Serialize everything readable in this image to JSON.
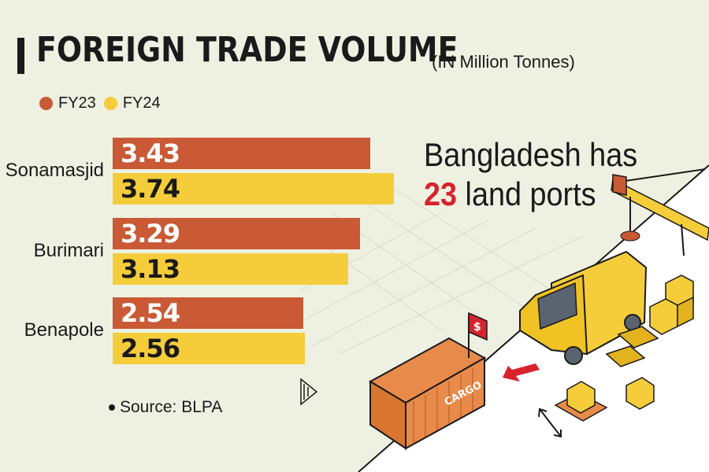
{
  "title": "FOREIGN TRADE VOLUME",
  "subtitle": "(IN Million Tonnes)",
  "headline": {
    "line1": "Bangladesh has",
    "number": "23",
    "line2_rest": " land ports"
  },
  "source": "Source: BLPA",
  "illustration": {
    "cargo_label": "CARGO",
    "sign_label": "$"
  },
  "colors": {
    "background": "#eef1e2",
    "fy23": "#c95a35",
    "fy24": "#f5cd3a",
    "accent_red": "#d7232d"
  },
  "chart_data": {
    "type": "bar",
    "orientation": "horizontal",
    "title": "FOREIGN TRADE VOLUME",
    "subtitle": "(IN Million Tonnes)",
    "categories": [
      "Sonamasjid",
      "Burimari",
      "Benapole"
    ],
    "series": [
      {
        "name": "FY23",
        "color": "#c95a35",
        "values": [
          3.43,
          3.29,
          2.54
        ],
        "labels": [
          "3.43",
          "3.29",
          "2.54"
        ]
      },
      {
        "name": "FY24",
        "color": "#f5cd3a",
        "values": [
          3.74,
          3.13,
          2.56
        ],
        "labels": [
          "3.74",
          "3.13",
          "2.56"
        ]
      }
    ],
    "xlim": [
      0,
      3.74
    ],
    "legend_position": "top-left",
    "grid": false
  }
}
